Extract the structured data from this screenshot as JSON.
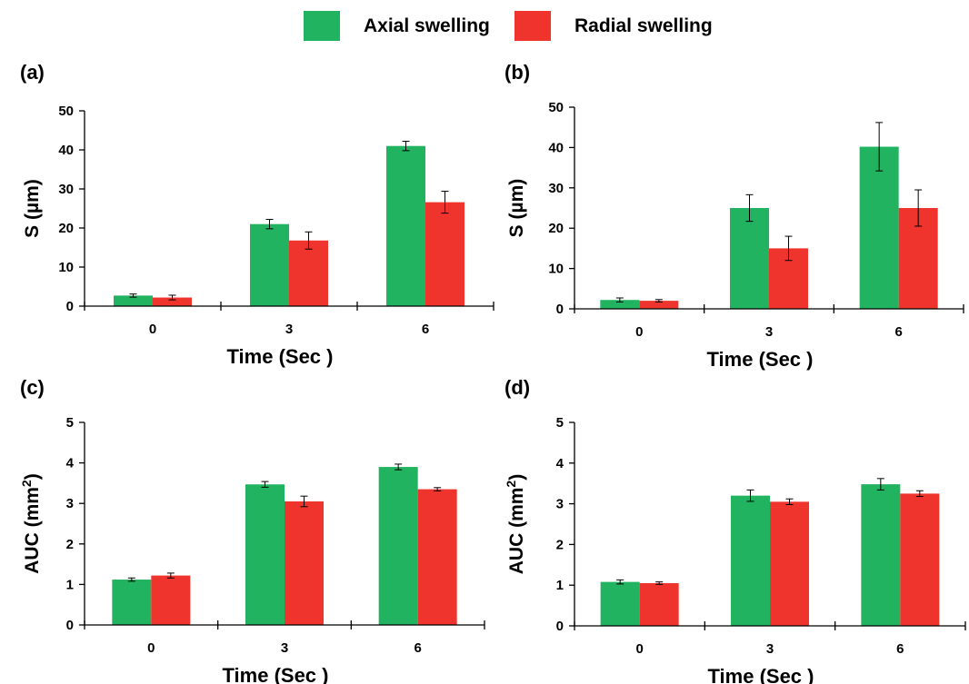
{
  "legend": {
    "entries": [
      {
        "label": "Axial swelling",
        "color": "#21b35f"
      },
      {
        "label": "Radial swelling",
        "color": "#ee342c"
      }
    ]
  },
  "chart_data": [
    {
      "type": "bar",
      "panel": "(a)",
      "categories": [
        "0",
        "3",
        "6"
      ],
      "xlabel": "Time (Sec )",
      "ylabel": "S (µm)",
      "ylabel_sup": "",
      "ylim": [
        0,
        50
      ],
      "yticks": [
        0,
        10,
        20,
        30,
        40,
        50
      ],
      "series": [
        {
          "name": "Axial swelling",
          "color": "#21b35f",
          "values": [
            2.7,
            21,
            41
          ],
          "errors": [
            0.4,
            1.2,
            1.2
          ]
        },
        {
          "name": "Radial swelling",
          "color": "#ee342c",
          "values": [
            2.2,
            16.8,
            26.6
          ],
          "errors": [
            0.6,
            2.2,
            2.8
          ]
        }
      ]
    },
    {
      "type": "bar",
      "panel": "(b)",
      "categories": [
        "0",
        "3",
        "6"
      ],
      "xlabel": "Time (Sec )",
      "ylabel": "S (µm)",
      "ylabel_sup": "",
      "ylim": [
        0,
        50
      ],
      "yticks": [
        0,
        10,
        20,
        30,
        40,
        50
      ],
      "series": [
        {
          "name": "Axial swelling",
          "color": "#21b35f",
          "values": [
            2.2,
            25,
            40.2
          ],
          "errors": [
            0.5,
            3.3,
            6
          ]
        },
        {
          "name": "Radial swelling",
          "color": "#ee342c",
          "values": [
            2.0,
            15,
            25
          ],
          "errors": [
            0.3,
            3,
            4.5
          ]
        }
      ]
    },
    {
      "type": "bar",
      "panel": "(c)",
      "categories": [
        "0",
        "3",
        "6"
      ],
      "xlabel": "Time (Sec )",
      "ylabel": "AUC  (mm",
      "ylabel_sup": "2",
      "ylabel_end": ")",
      "ylim": [
        0,
        5
      ],
      "yticks": [
        0,
        1,
        2,
        3,
        4,
        5
      ],
      "series": [
        {
          "name": "Axial swelling",
          "color": "#21b35f",
          "values": [
            1.12,
            3.47,
            3.9
          ],
          "errors": [
            0.04,
            0.07,
            0.07
          ]
        },
        {
          "name": "Radial swelling",
          "color": "#ee342c",
          "values": [
            1.22,
            3.05,
            3.35
          ],
          "errors": [
            0.06,
            0.13,
            0.04
          ]
        }
      ]
    },
    {
      "type": "bar",
      "panel": "(d)",
      "categories": [
        "0",
        "3",
        "6"
      ],
      "xlabel": "Time (Sec )",
      "ylabel": "AUC  (mm",
      "ylabel_sup": "2",
      "ylabel_end": ")",
      "ylim": [
        0,
        5
      ],
      "yticks": [
        0,
        1,
        2,
        3,
        4,
        5
      ],
      "series": [
        {
          "name": "Axial swelling",
          "color": "#21b35f",
          "values": [
            1.08,
            3.2,
            3.48
          ],
          "errors": [
            0.05,
            0.14,
            0.14
          ]
        },
        {
          "name": "Radial swelling",
          "color": "#ee342c",
          "values": [
            1.05,
            3.05,
            3.25
          ],
          "errors": [
            0.03,
            0.07,
            0.07
          ]
        }
      ]
    }
  ]
}
